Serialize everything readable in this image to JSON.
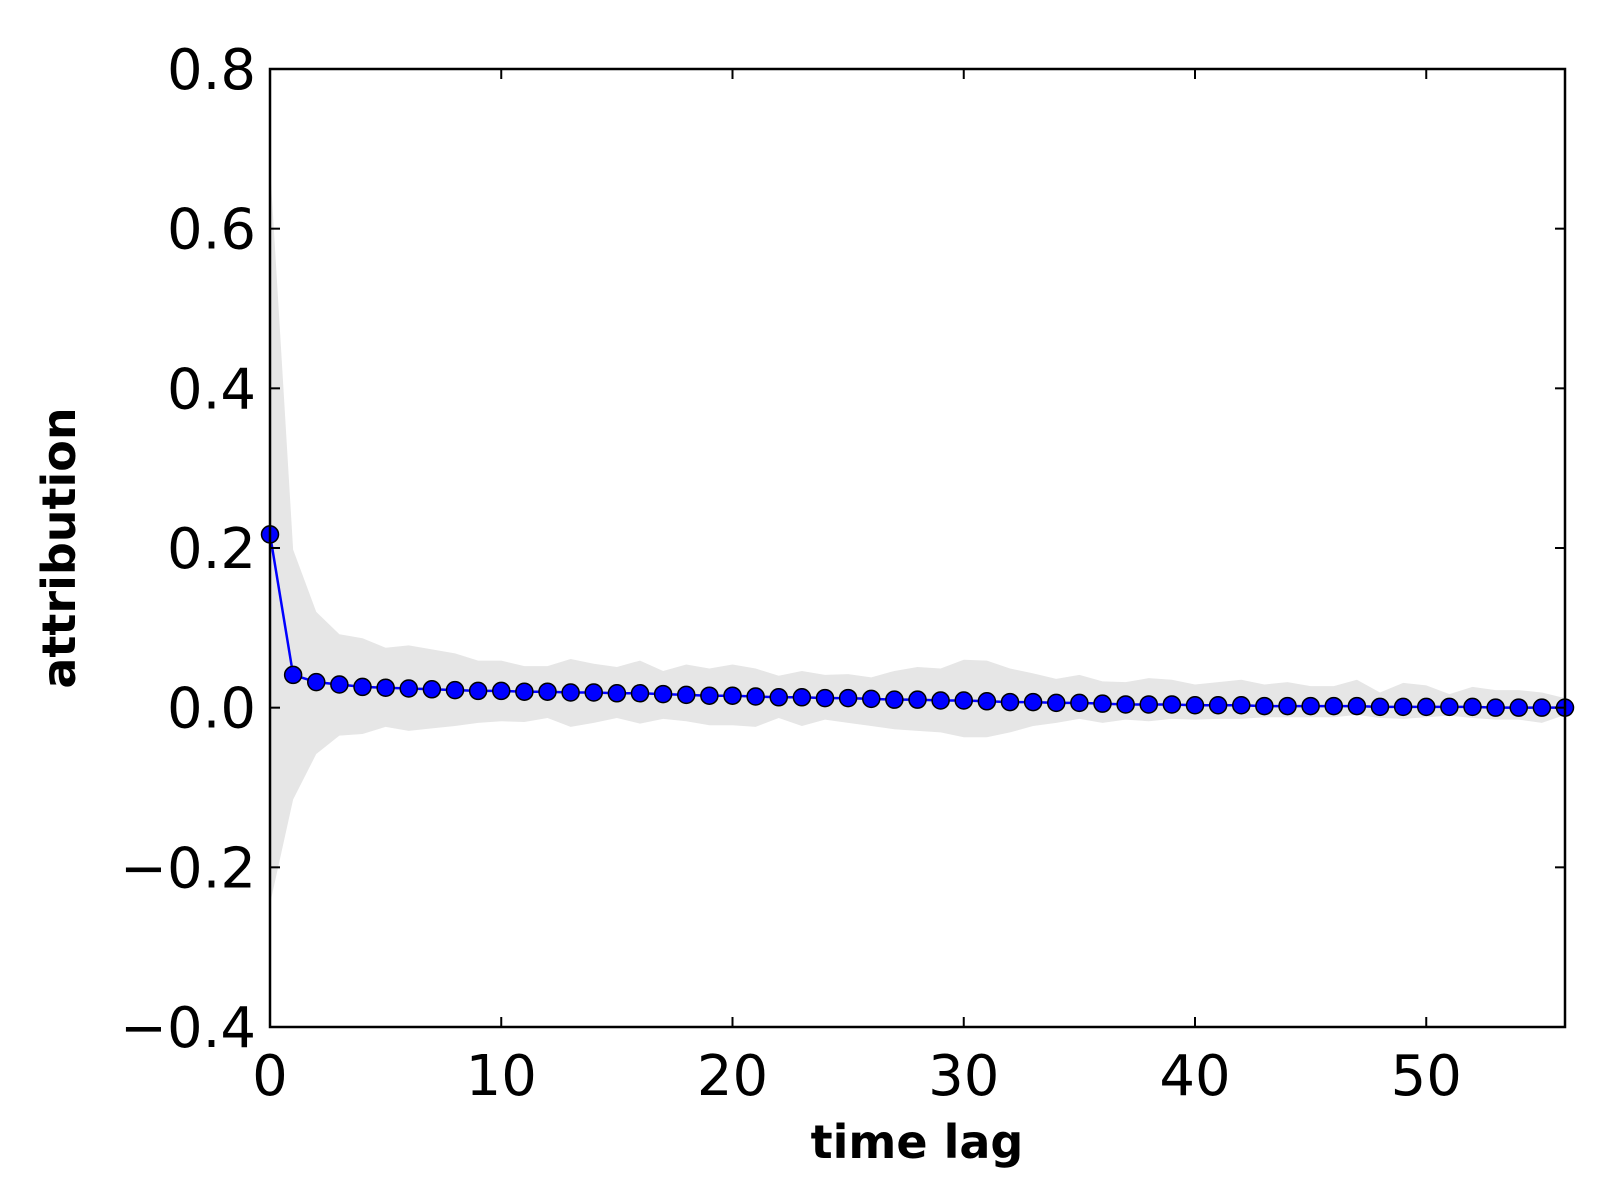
{
  "chart_data": {
    "type": "line",
    "xlabel": "time lag",
    "ylabel": "attribution",
    "x": [
      0,
      1,
      2,
      3,
      4,
      5,
      6,
      7,
      8,
      9,
      10,
      11,
      12,
      13,
      14,
      15,
      16,
      17,
      18,
      19,
      20,
      21,
      22,
      23,
      24,
      25,
      26,
      27,
      28,
      29,
      30,
      31,
      32,
      33,
      34,
      35,
      36,
      37,
      38,
      39,
      40,
      41,
      42,
      43,
      44,
      45,
      46,
      47,
      48,
      49,
      50,
      51,
      52,
      53,
      54,
      55,
      56
    ],
    "series": [
      {
        "color": "#0000ff",
        "values": [
          0.217,
          0.041,
          0.032,
          0.029,
          0.026,
          0.025,
          0.024,
          0.023,
          0.022,
          0.021,
          0.021,
          0.02,
          0.02,
          0.019,
          0.019,
          0.018,
          0.018,
          0.017,
          0.016,
          0.015,
          0.015,
          0.014,
          0.013,
          0.013,
          0.012,
          0.012,
          0.011,
          0.01,
          0.01,
          0.009,
          0.009,
          0.008,
          0.007,
          0.007,
          0.006,
          0.006,
          0.005,
          0.004,
          0.004,
          0.004,
          0.003,
          0.003,
          0.003,
          0.002,
          0.002,
          0.002,
          0.002,
          0.002,
          0.001,
          0.001,
          0.001,
          0.001,
          0.001,
          0.0,
          0.0,
          0.0,
          0.0
        ],
        "upper": [
          0.68,
          0.198,
          0.12,
          0.092,
          0.087,
          0.075,
          0.078,
          0.073,
          0.068,
          0.059,
          0.059,
          0.052,
          0.052,
          0.061,
          0.055,
          0.051,
          0.059,
          0.046,
          0.054,
          0.049,
          0.054,
          0.049,
          0.04,
          0.046,
          0.041,
          0.042,
          0.038,
          0.046,
          0.051,
          0.049,
          0.06,
          0.059,
          0.049,
          0.043,
          0.036,
          0.041,
          0.033,
          0.032,
          0.037,
          0.035,
          0.029,
          0.032,
          0.035,
          0.029,
          0.032,
          0.027,
          0.027,
          0.035,
          0.019,
          0.031,
          0.028,
          0.017,
          0.026,
          0.022,
          0.022,
          0.019,
          0.012
        ],
        "lower": [
          -0.246,
          -0.115,
          -0.058,
          -0.035,
          -0.033,
          -0.024,
          -0.029,
          -0.026,
          -0.023,
          -0.019,
          -0.017,
          -0.018,
          -0.013,
          -0.024,
          -0.019,
          -0.013,
          -0.02,
          -0.014,
          -0.017,
          -0.022,
          -0.022,
          -0.024,
          -0.013,
          -0.023,
          -0.015,
          -0.019,
          -0.023,
          -0.027,
          -0.029,
          -0.031,
          -0.037,
          -0.037,
          -0.031,
          -0.023,
          -0.019,
          -0.014,
          -0.019,
          -0.015,
          -0.017,
          -0.014,
          -0.015,
          -0.014,
          -0.014,
          -0.012,
          -0.012,
          -0.012,
          -0.012,
          -0.009,
          -0.013,
          -0.014,
          -0.012,
          -0.01,
          -0.013,
          -0.015,
          -0.015,
          -0.019,
          -0.009
        ],
        "band_color": "#e6e6e6"
      }
    ],
    "xlim": [
      0,
      56
    ],
    "xticks": [
      0,
      10,
      20,
      30,
      40,
      50
    ],
    "ylim": [
      -0.4,
      0.8
    ],
    "yticks": [
      {
        "value": -0.4,
        "label": "−0.4"
      },
      {
        "value": -0.2,
        "label": "−0.2"
      },
      {
        "value": 0,
        "label": "0.0"
      },
      0.2,
      0.4,
      0.6,
      0.8
    ]
  }
}
